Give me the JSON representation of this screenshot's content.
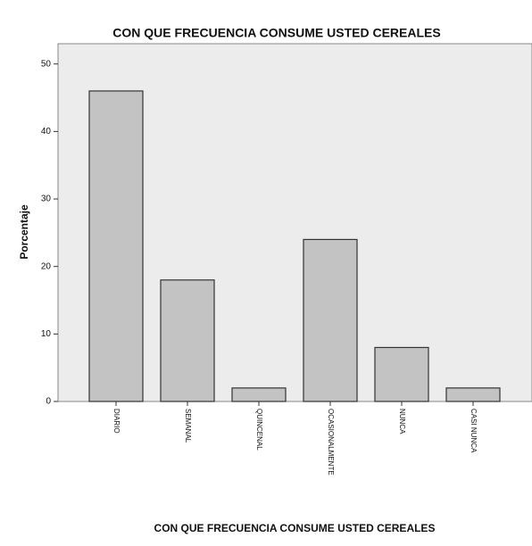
{
  "chart_data": {
    "type": "bar",
    "title": "CON QUE FRECUENCIA CONSUME USTED CEREALES",
    "x_label": "CON QUE FRECUENCIA CONSUME USTED CEREALES",
    "y_label": "Porcentaje",
    "categories": [
      "DIARIO",
      "SEMANAL",
      "QUINCENAL",
      "OCASIONALMENTE",
      "NUNCA",
      "CASI NUNCA"
    ],
    "values": [
      46,
      18,
      2,
      24,
      8,
      2
    ],
    "color": "#c3c3c3",
    "ylim": [
      0,
      53
    ],
    "yticks": [
      0,
      10,
      20,
      30,
      40,
      50
    ],
    "grid": false
  }
}
